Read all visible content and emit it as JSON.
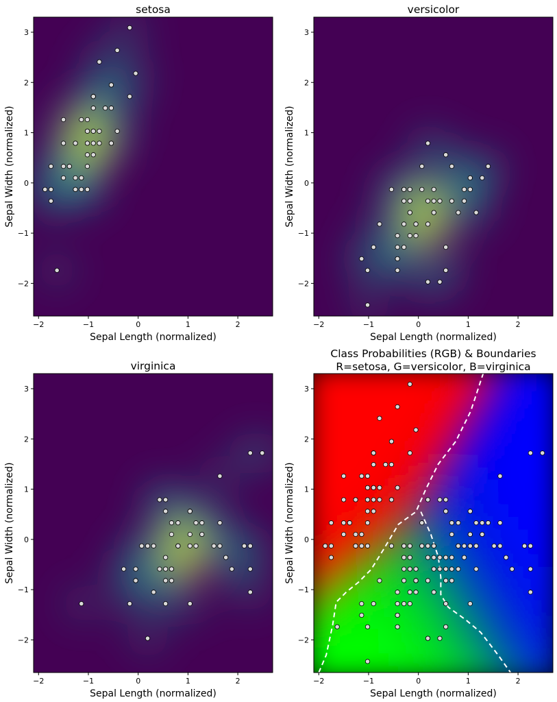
{
  "colors": {
    "viridis_low": "#440154",
    "viridis_high": "#fde725",
    "setosa_rgb": "#ff0000",
    "versicolor_rgb": "#00ff00",
    "virginica_rgb": "#0000ff",
    "point_fill": "#d9d9d9",
    "point_edge": "#000000",
    "boundary": "#ffffff"
  },
  "chart_data": [
    {
      "type": "scatter",
      "overlay": "density",
      "title": "setosa",
      "xlabel": "Sepal Length (normalized)",
      "ylabel": "Sepal Width (normalized)",
      "xlim": [
        -2.1,
        2.7
      ],
      "ylim": [
        -2.65,
        3.3
      ],
      "xticks": [
        -2,
        -1,
        0,
        1,
        2
      ],
      "yticks": [
        -2,
        -1,
        0,
        1,
        2,
        3
      ],
      "grid": false,
      "points": [
        [
          -0.9,
          1.03
        ],
        [
          -1.14,
          -0.13
        ],
        [
          -1.38,
          0.33
        ],
        [
          -1.5,
          0.1
        ],
        [
          -1.02,
          1.26
        ],
        [
          -0.54,
          1.95
        ],
        [
          -1.5,
          0.79
        ],
        [
          -1.02,
          0.79
        ],
        [
          -1.75,
          -0.36
        ],
        [
          -1.14,
          0.1
        ],
        [
          -0.54,
          1.49
        ],
        [
          -1.26,
          0.79
        ],
        [
          -1.26,
          -0.13
        ],
        [
          -1.87,
          -0.13
        ],
        [
          -0.05,
          2.18
        ],
        [
          -0.17,
          3.09
        ],
        [
          -0.54,
          1.95
        ],
        [
          -0.9,
          1.03
        ],
        [
          -0.17,
          1.72
        ],
        [
          -0.9,
          1.72
        ],
        [
          -0.54,
          0.79
        ],
        [
          -0.9,
          1.49
        ],
        [
          -1.5,
          1.26
        ],
        [
          -0.9,
          0.56
        ],
        [
          -1.26,
          0.79
        ],
        [
          -1.02,
          -0.13
        ],
        [
          -1.02,
          0.79
        ],
        [
          -0.78,
          1.03
        ],
        [
          -0.78,
          0.79
        ],
        [
          -1.38,
          0.33
        ],
        [
          -1.26,
          0.1
        ],
        [
          -0.54,
          0.79
        ],
        [
          -0.78,
          2.41
        ],
        [
          -0.42,
          2.64
        ],
        [
          -1.14,
          0.1
        ],
        [
          -1.02,
          0.33
        ],
        [
          -0.42,
          1.03
        ],
        [
          -1.14,
          1.26
        ],
        [
          -1.75,
          -0.13
        ],
        [
          -0.9,
          0.79
        ],
        [
          -1.02,
          1.03
        ],
        [
          -1.63,
          -1.74
        ],
        [
          -1.75,
          0.33
        ],
        [
          -1.02,
          1.03
        ],
        [
          -0.9,
          1.72
        ],
        [
          -1.26,
          -0.13
        ],
        [
          -0.9,
          1.72
        ],
        [
          -1.5,
          0.33
        ],
        [
          -0.66,
          1.49
        ],
        [
          -1.02,
          0.56
        ]
      ]
    },
    {
      "type": "scatter",
      "overlay": "density",
      "title": "versicolor",
      "xlabel": "Sepal Length (normalized)",
      "ylabel": "Sepal Width (normalized)",
      "xlim": [
        -2.1,
        2.7
      ],
      "ylim": [
        -2.65,
        3.3
      ],
      "xticks": [
        -2,
        -1,
        0,
        1,
        2
      ],
      "yticks": [
        -2,
        -1,
        0,
        1,
        2,
        3
      ],
      "grid": false,
      "points": [
        [
          1.4,
          0.33
        ],
        [
          0.67,
          0.33
        ],
        [
          1.28,
          0.1
        ],
        [
          -0.42,
          -1.74
        ],
        [
          0.8,
          -0.59
        ],
        [
          -0.17,
          -0.59
        ],
        [
          0.55,
          0.56
        ],
        [
          -1.14,
          -1.51
        ],
        [
          0.92,
          -0.36
        ],
        [
          -0.78,
          -0.82
        ],
        [
          -1.02,
          -2.43
        ],
        [
          0.07,
          -0.13
        ],
        [
          0.19,
          -1.97
        ],
        [
          0.31,
          -0.36
        ],
        [
          -0.29,
          -0.36
        ],
        [
          1.04,
          0.1
        ],
        [
          -0.29,
          -0.13
        ],
        [
          -0.05,
          -0.82
        ],
        [
          0.43,
          -1.97
        ],
        [
          -0.29,
          -1.28
        ],
        [
          0.07,
          0.33
        ],
        [
          0.31,
          -0.59
        ],
        [
          0.55,
          -1.28
        ],
        [
          0.31,
          -0.59
        ],
        [
          0.67,
          -0.36
        ],
        [
          0.92,
          -0.13
        ],
        [
          1.16,
          -0.59
        ],
        [
          1.04,
          -0.13
        ],
        [
          0.19,
          -0.36
        ],
        [
          -0.17,
          -1.05
        ],
        [
          -0.42,
          -1.51
        ],
        [
          -0.42,
          -1.51
        ],
        [
          -0.05,
          -0.82
        ],
        [
          0.19,
          -0.82
        ],
        [
          -0.54,
          -0.13
        ],
        [
          0.19,
          0.79
        ],
        [
          1.04,
          0.1
        ],
        [
          0.55,
          -1.74
        ],
        [
          -0.29,
          -0.13
        ],
        [
          -0.42,
          -1.28
        ],
        [
          -0.42,
          -1.05
        ],
        [
          0.31,
          -0.13
        ],
        [
          -0.05,
          -1.05
        ],
        [
          -1.02,
          -1.74
        ],
        [
          -0.29,
          -0.82
        ],
        [
          -0.17,
          -0.13
        ],
        [
          -0.17,
          -0.36
        ],
        [
          0.43,
          -0.36
        ],
        [
          -0.9,
          -1.28
        ],
        [
          -0.17,
          -0.59
        ]
      ]
    },
    {
      "type": "scatter",
      "overlay": "density",
      "title": "virginica",
      "xlabel": "Sepal Length (normalized)",
      "ylabel": "Sepal Width (normalized)",
      "xlim": [
        -2.1,
        2.7
      ],
      "ylim": [
        -2.65,
        3.3
      ],
      "xticks": [
        -2,
        -1,
        0,
        1,
        2
      ],
      "yticks": [
        -2,
        -1,
        0,
        1,
        2,
        3
      ],
      "grid": false,
      "points": [
        [
          0.55,
          0.56
        ],
        [
          -0.05,
          -0.82
        ],
        [
          1.52,
          -0.13
        ],
        [
          0.55,
          -0.36
        ],
        [
          0.8,
          -0.13
        ],
        [
          2.13,
          -0.13
        ],
        [
          -1.14,
          -1.28
        ],
        [
          1.76,
          -0.36
        ],
        [
          1.04,
          -1.28
        ],
        [
          1.64,
          1.26
        ],
        [
          0.8,
          0.33
        ],
        [
          0.67,
          -0.82
        ],
        [
          1.16,
          -0.13
        ],
        [
          -0.17,
          -1.28
        ],
        [
          -0.05,
          -0.59
        ],
        [
          0.67,
          0.33
        ],
        [
          0.8,
          -0.13
        ],
        [
          2.25,
          1.72
        ],
        [
          2.25,
          -1.05
        ],
        [
          0.19,
          -1.97
        ],
        [
          1.28,
          0.33
        ],
        [
          -0.29,
          -0.59
        ],
        [
          2.25,
          -0.59
        ],
        [
          0.55,
          -0.82
        ],
        [
          1.04,
          0.56
        ],
        [
          1.64,
          0.33
        ],
        [
          0.43,
          -0.59
        ],
        [
          0.31,
          -0.13
        ],
        [
          0.67,
          -0.59
        ],
        [
          1.64,
          -0.13
        ],
        [
          1.88,
          -0.59
        ],
        [
          2.49,
          1.72
        ],
        [
          0.67,
          -0.59
        ],
        [
          0.55,
          -0.59
        ],
        [
          0.31,
          -1.05
        ],
        [
          2.25,
          -0.13
        ],
        [
          0.55,
          0.79
        ],
        [
          0.67,
          0.1
        ],
        [
          0.19,
          -0.13
        ],
        [
          1.28,
          0.1
        ],
        [
          1.04,
          0.1
        ],
        [
          1.28,
          0.1
        ],
        [
          -0.05,
          -0.82
        ],
        [
          1.16,
          0.33
        ],
        [
          1.04,
          0.56
        ],
        [
          1.04,
          -0.13
        ],
        [
          0.55,
          -1.28
        ],
        [
          0.8,
          -0.13
        ],
        [
          0.43,
          0.79
        ],
        [
          0.07,
          -0.13
        ]
      ]
    },
    {
      "type": "scatter",
      "overlay": "rgb-probability",
      "title": "Class Probabilities (RGB) & Boundaries",
      "subtitle": "R=setosa, G=versicolor, B=virginica",
      "xlabel": "Sepal Length (normalized)",
      "ylabel": "Sepal Width (normalized)",
      "xlim": [
        -2.1,
        2.7
      ],
      "ylim": [
        -2.65,
        3.3
      ],
      "xticks": [
        -2,
        -1,
        0,
        1,
        2
      ],
      "yticks": [
        -2,
        -1,
        0,
        1,
        2,
        3
      ],
      "grid": false,
      "points_from": [
        0,
        1,
        2
      ],
      "boundaries": [
        [
          [
            -2.0,
            -2.65
          ],
          [
            -1.85,
            -2.3
          ],
          [
            -1.72,
            -1.7
          ],
          [
            -1.65,
            -1.25
          ],
          [
            -1.45,
            -1.05
          ],
          [
            -1.2,
            -0.85
          ],
          [
            -0.95,
            -0.6
          ],
          [
            -0.7,
            -0.2
          ],
          [
            -0.4,
            0.3
          ],
          [
            -0.05,
            0.55
          ],
          [
            0.15,
            1.0
          ],
          [
            0.4,
            1.5
          ],
          [
            0.75,
            1.95
          ],
          [
            1.05,
            2.55
          ],
          [
            1.3,
            3.3
          ]
        ],
        [
          [
            0.05,
            0.55
          ],
          [
            0.25,
            0.1
          ],
          [
            0.4,
            -0.35
          ],
          [
            0.45,
            -0.75
          ],
          [
            0.45,
            -1.1
          ],
          [
            0.6,
            -1.35
          ],
          [
            0.95,
            -1.6
          ],
          [
            1.25,
            -1.85
          ],
          [
            1.6,
            -2.3
          ],
          [
            1.85,
            -2.65
          ]
        ]
      ]
    }
  ]
}
